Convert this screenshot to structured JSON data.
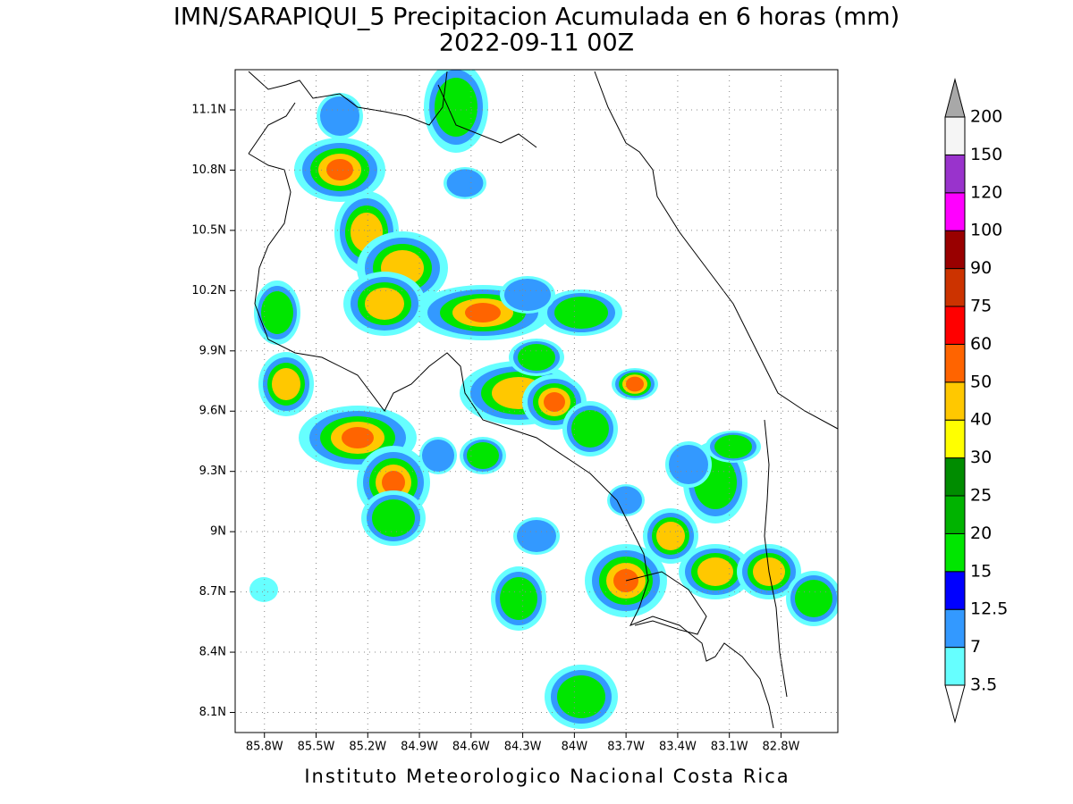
{
  "chart_data": {
    "type": "map",
    "title": "IMN/SARAPIQUI_5 Precipitacion Acumulada en 6 horas (mm)",
    "subtitle": "2022-09-11 00Z",
    "footer": "Instituto Meteorologico Nacional Costa Rica",
    "xlim": [
      -85.97,
      -82.47
    ],
    "ylim": [
      8.0,
      11.3
    ],
    "xticks": [
      {
        "value": -85.8,
        "label": "85.8W"
      },
      {
        "value": -85.5,
        "label": "85.5W"
      },
      {
        "value": -85.2,
        "label": "85.2W"
      },
      {
        "value": -84.9,
        "label": "84.9W"
      },
      {
        "value": -84.6,
        "label": "84.6W"
      },
      {
        "value": -84.3,
        "label": "84.3W"
      },
      {
        "value": -84.0,
        "label": "84W"
      },
      {
        "value": -83.7,
        "label": "83.7W"
      },
      {
        "value": -83.4,
        "label": "83.4W"
      },
      {
        "value": -83.1,
        "label": "83.1W"
      },
      {
        "value": -82.8,
        "label": "82.8W"
      }
    ],
    "yticks": [
      {
        "value": 8.1,
        "label": "8.1N"
      },
      {
        "value": 8.4,
        "label": "8.4N"
      },
      {
        "value": 8.7,
        "label": "8.7N"
      },
      {
        "value": 9.0,
        "label": "9N"
      },
      {
        "value": 9.3,
        "label": "9.3N"
      },
      {
        "value": 9.6,
        "label": "9.6N"
      },
      {
        "value": 9.9,
        "label": "9.9N"
      },
      {
        "value": 10.2,
        "label": "10.2N"
      },
      {
        "value": 10.5,
        "label": "10.5N"
      },
      {
        "value": 10.8,
        "label": "10.8N"
      },
      {
        "value": 11.1,
        "label": "11.1N"
      }
    ],
    "grid": true,
    "levels": [
      3.5,
      7,
      12.5,
      15,
      20,
      25,
      30,
      40,
      50,
      60,
      75,
      90,
      100,
      120,
      150,
      200
    ],
    "colors": [
      "#ffffff",
      "#66ffff",
      "#3399ff",
      "#0000ff",
      "#00e600",
      "#00b300",
      "#008c00",
      "#ffff00",
      "#ffc800",
      "#ff6400",
      "#ff0000",
      "#cc3300",
      "#990000",
      "#ff00ff",
      "#9933cc",
      "#f5f5f5",
      "#a8a8a8"
    ]
  }
}
